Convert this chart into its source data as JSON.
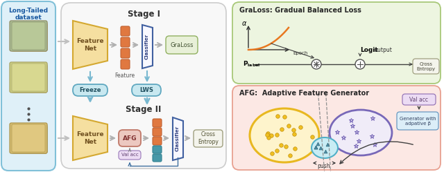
{
  "fig_width": 6.4,
  "fig_height": 2.49,
  "bg_color": "#ffffff",
  "left_panel_bg": "#dff0f8",
  "left_panel_ec": "#80c0d8",
  "stage_panel_bg": "#f8f8f8",
  "stage_panel_ec": "#cccccc",
  "graloss_panel_bg": "#edf5e0",
  "graloss_panel_ec": "#a8c878",
  "afg_panel_bg": "#fce8e4",
  "afg_panel_ec": "#e8a090",
  "title_left": "Long-Tailed\ndataset",
  "title_stage1": "Stage I",
  "title_stage2": "Stage II",
  "title_graloss": "GraLoss: Gradual Balanced Loss",
  "title_afg": "AFG:  Adaptive Feature Generator",
  "feature_net_color": "#f5dfa0",
  "feature_net_ec": "#d4a830",
  "feature_bar_orange": "#e07840",
  "feature_bar_teal": "#4898a8",
  "classifier_face": "#f8f8ff",
  "classifier_ec": "#4060a0",
  "graloss_box_color": "#e8f0d8",
  "graloss_box_ec": "#90b060",
  "freeze_color": "#c8e8f0",
  "freeze_ec": "#60a8c0",
  "lws_color": "#c8e8f0",
  "lws_ec": "#60a8c0",
  "afg_face": "#ecc8c0",
  "afg_ec": "#c07868",
  "cross_entropy_face": "#f4f4ec",
  "cross_entropy_ec": "#a0a080",
  "val_acc_face": "#ecdcf4",
  "val_acc_ec": "#9878b8",
  "generator_face": "#dceef8",
  "generator_ec": "#6898c0",
  "ellipse_yellow_face": "#fef4cc",
  "ellipse_yellow_ec": "#e8b820",
  "ellipse_purple_face": "#f0ecf8",
  "ellipse_purple_ec": "#7868b8",
  "ellipse_blue_face": "#c8ecf4",
  "ellipse_blue_ec": "#50b0c8",
  "orange_curve": "#e87820",
  "arrow_gray": "#c0c0c0",
  "arrow_blue": "#78b8d0",
  "line_dark": "#404040"
}
